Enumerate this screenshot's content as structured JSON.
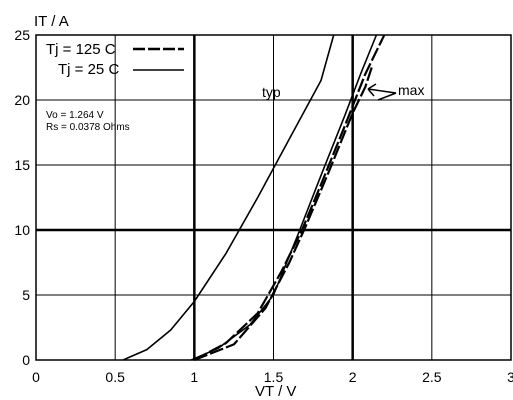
{
  "chart_data": {
    "type": "line",
    "ylabel": "IT / A",
    "xlabel": "VT / V",
    "xlim": [
      0,
      3
    ],
    "ylim": [
      0,
      25
    ],
    "x_ticks": [
      "0",
      "0.5",
      "1",
      "1.5",
      "2",
      "2.5",
      "3"
    ],
    "y_ticks": [
      "0",
      "5",
      "10",
      "15",
      "20",
      "25"
    ],
    "legend": {
      "entries": [
        {
          "label": "Tj = 125 C",
          "style": "dashed"
        },
        {
          "label": "Tj = 25 C",
          "style": "solid"
        }
      ]
    },
    "parameters": [
      "Vo = 1.264 V",
      "Rs = 0.0378 Ohms"
    ],
    "annotations": [
      {
        "text": "typ",
        "x": 1.47,
        "y": 20.5
      },
      {
        "text": "max",
        "x": 2.3,
        "y": 20.8
      }
    ],
    "series": [
      {
        "style": "solid",
        "points": [
          [
            0.55,
            0
          ],
          [
            0.7,
            0.8
          ],
          [
            0.85,
            2.3
          ],
          [
            1.0,
            4.5
          ],
          [
            1.2,
            8.2
          ],
          [
            1.4,
            12.5
          ],
          [
            1.6,
            17.0
          ],
          [
            1.8,
            21.5
          ],
          [
            1.88,
            25
          ]
        ]
      },
      {
        "style": "solid",
        "points": [
          [
            0.98,
            0
          ],
          [
            1.15,
            0.9
          ],
          [
            1.35,
            2.7
          ],
          [
            1.5,
            5.0
          ],
          [
            1.65,
            9.5
          ],
          [
            1.8,
            14.2
          ],
          [
            1.95,
            18.8
          ],
          [
            2.05,
            22.0
          ],
          [
            2.15,
            25
          ]
        ]
      },
      {
        "style": "dashed",
        "points": [
          [
            1.0,
            0
          ],
          [
            1.2,
            1.3
          ],
          [
            1.4,
            3.6
          ],
          [
            1.55,
            6.8
          ],
          [
            1.68,
            10.0
          ],
          [
            1.8,
            13.5
          ],
          [
            1.95,
            18.0
          ],
          [
            2.08,
            22.0
          ],
          [
            2.2,
            25
          ]
        ]
      },
      {
        "style": "dashed",
        "points": [
          [
            1.0,
            0
          ],
          [
            1.25,
            1.2
          ],
          [
            1.45,
            4.0
          ],
          [
            1.6,
            7.5
          ],
          [
            1.7,
            10.2
          ],
          [
            1.85,
            14.5
          ],
          [
            2.0,
            19.0
          ],
          [
            2.08,
            21.0
          ],
          [
            2.12,
            22.5
          ]
        ]
      }
    ]
  }
}
